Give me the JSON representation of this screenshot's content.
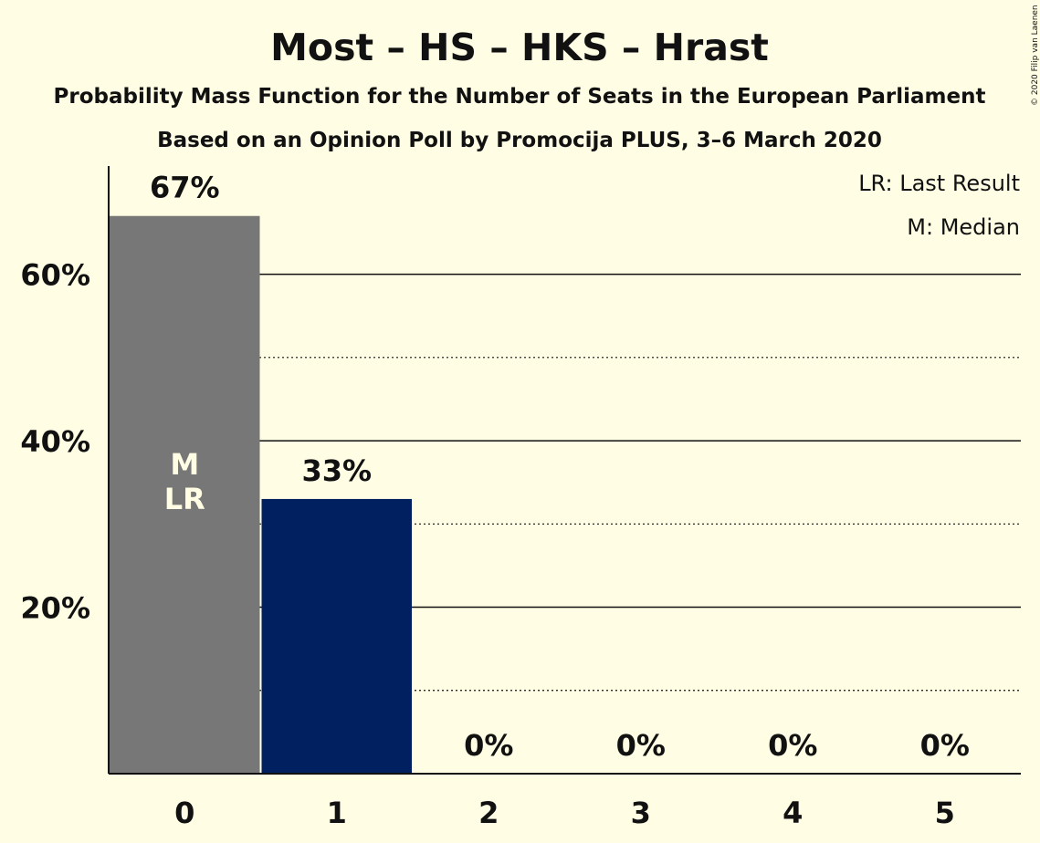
{
  "title": "Most – HS – HKS – Hrast",
  "subtitle1": "Probability Mass Function for the Number of Seats in the European Parliament",
  "subtitle2": "Based on an Opinion Poll by Promocija PLUS, 3–6 March 2020",
  "copyright": "© 2020 Filip van Laenen",
  "legend": {
    "lr": "LR: Last Result",
    "m": "M: Median"
  },
  "colors": {
    "background": "#FFFDE3",
    "median_bar": "#777777",
    "bar": "#00205F",
    "text": "#111111"
  },
  "chart_data": {
    "type": "bar",
    "categories": [
      "0",
      "1",
      "2",
      "3",
      "4",
      "5"
    ],
    "values": [
      67,
      33,
      0,
      0,
      0,
      0
    ],
    "value_labels": [
      "67%",
      "33%",
      "0%",
      "0%",
      "0%",
      "0%"
    ],
    "ylim": [
      0,
      73
    ],
    "yticks": [
      {
        "value": 20,
        "label": "20%"
      },
      {
        "value": 40,
        "label": "40%"
      },
      {
        "value": 60,
        "label": "60%"
      }
    ],
    "minor_gridlines": [
      10,
      30,
      50
    ],
    "bar_annotations": [
      {
        "category": "0",
        "lines": [
          "M",
          "LR"
        ]
      }
    ],
    "median_category": "0",
    "last_result_category": "0",
    "grid": true,
    "legend_position": "top-right"
  }
}
